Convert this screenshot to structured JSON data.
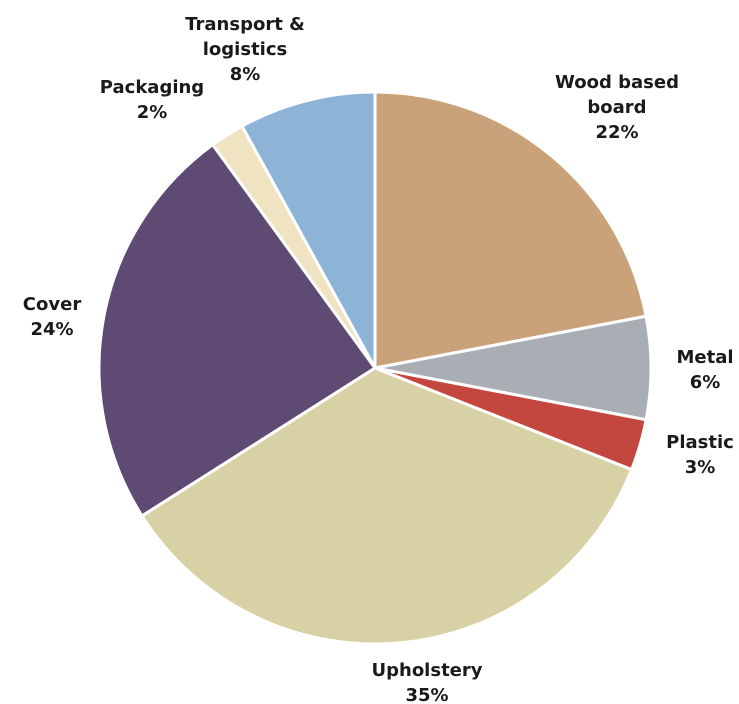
{
  "chart_data": {
    "type": "pie",
    "categories": [
      "Wood based board",
      "Metal",
      "Plastic",
      "Upholstery",
      "Cover",
      "Packaging",
      "Transport & logistics"
    ],
    "values": [
      22,
      6,
      3,
      35,
      24,
      2,
      8
    ],
    "value_labels": [
      "22%",
      "6%",
      "3%",
      "35%",
      "24%",
      "2%",
      "8%"
    ],
    "colors": [
      "#c9a27a",
      "#a9aeb5",
      "#c4473f",
      "#d9d1a6",
      "#5e4a72",
      "#efe3c2",
      "#8db4d6"
    ]
  }
}
